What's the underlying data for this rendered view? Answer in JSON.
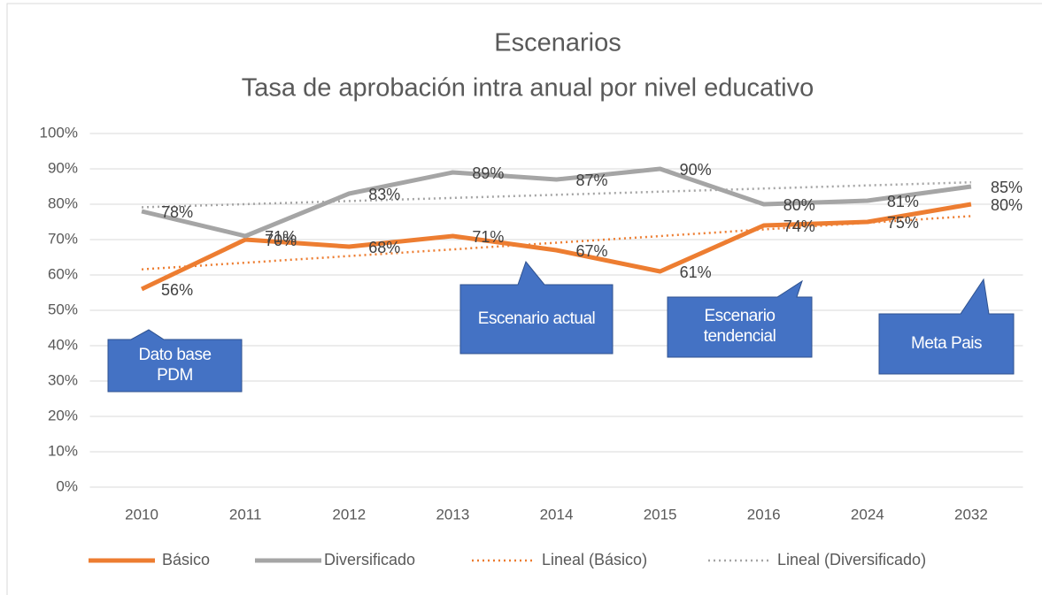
{
  "chart_data": {
    "type": "line",
    "title": "Escenarios",
    "subtitle": "Tasa de aprobación intra anual por nivel educativo",
    "categories": [
      "2010",
      "2011",
      "2012",
      "2013",
      "2014",
      "2015",
      "2016",
      "2024",
      "2032"
    ],
    "series": [
      {
        "name": "Básico",
        "color": "#ed7d31",
        "values": [
          56,
          70,
          68,
          71,
          67,
          61,
          74,
          75,
          80
        ],
        "value_labels": [
          "56%",
          "70%",
          "68%",
          "71%",
          "67%",
          "61%",
          "74%",
          "75%",
          "80%"
        ],
        "trendline": "Lineal (Básico)"
      },
      {
        "name": "Diversificado",
        "color": "#a5a5a5",
        "values": [
          78,
          71,
          83,
          89,
          87,
          90,
          80,
          81,
          85
        ],
        "value_labels": [
          "78%",
          "71%",
          "83%",
          "89%",
          "87%",
          "90%",
          "80%",
          "81%",
          "85%"
        ],
        "trendline": "Lineal (Diversificado)"
      }
    ],
    "ylim": [
      0,
      100
    ],
    "yticks": [
      {
        "value": 0,
        "label": "0%"
      },
      {
        "value": 10,
        "label": "10%"
      },
      {
        "value": 20,
        "label": "20%"
      },
      {
        "value": 30,
        "label": "30%"
      },
      {
        "value": 40,
        "label": "40%"
      },
      {
        "value": 50,
        "label": "50%"
      },
      {
        "value": 60,
        "label": "60%"
      },
      {
        "value": 70,
        "label": "70%"
      },
      {
        "value": 80,
        "label": "80%"
      },
      {
        "value": 90,
        "label": "90%"
      },
      {
        "value": 100,
        "label": "100%"
      }
    ],
    "grid": true,
    "legend": "bottom",
    "annotations": [
      "Dato base PDM",
      "Escenario actual",
      "Escenario tendencial",
      "Meta Pais"
    ],
    "annotation_color": "#4472c4"
  }
}
